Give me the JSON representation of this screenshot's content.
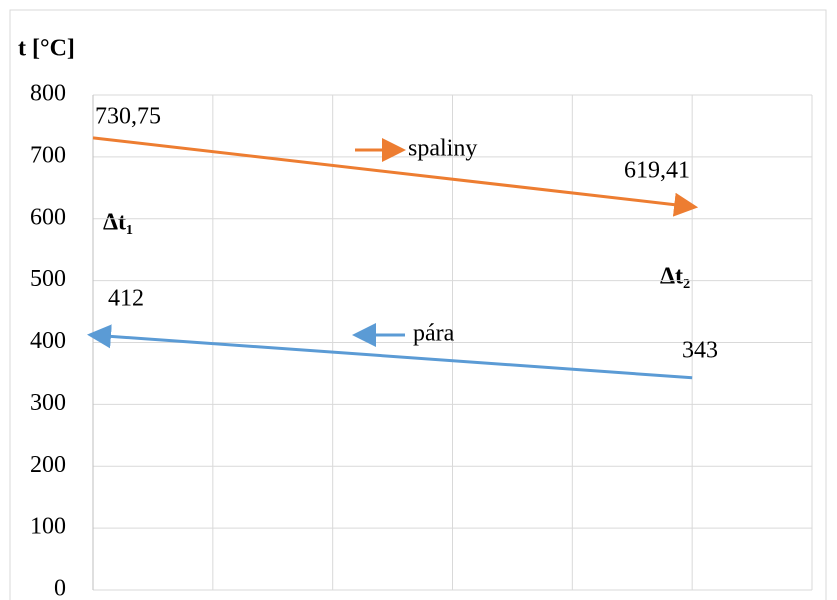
{
  "chart_data": {
    "type": "line",
    "y_label": "t [°C]",
    "x": [
      0,
      5
    ],
    "xlim": [
      0,
      6
    ],
    "series": [
      {
        "name": "spaliny",
        "color": "#ed7d31",
        "values": [
          730.75,
          619.41
        ],
        "value_labels": [
          "730,75",
          "619,41"
        ],
        "arrow": "end"
      },
      {
        "name": "pára",
        "color": "#5b9bd5",
        "values": [
          412,
          343
        ],
        "arrow": "start"
      }
    ],
    "annotations": [
      "Δt₁",
      "Δt₂"
    ],
    "ylim": [
      0,
      800
    ],
    "yticks": [
      0,
      100,
      200,
      300,
      400,
      500,
      600,
      700,
      800
    ],
    "grid": true
  }
}
